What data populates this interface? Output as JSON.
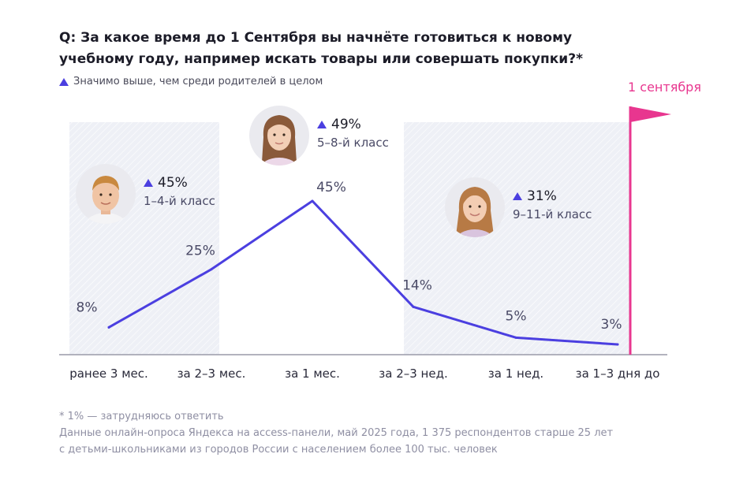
{
  "title": "Q: За какое время до 1 Сентября вы начнёте готовиться к новому учебному году, например искать товары или совершать покупки?*",
  "legend_note": "Значимо выше, чем среди родителей в целом",
  "flag_label": "1 сентября",
  "colors": {
    "line": "#4b3fe0",
    "flag": "#e8368f",
    "band": "#eef0f6",
    "text": "#1c1c28",
    "muted": "#8f8fa3"
  },
  "cards": [
    {
      "pct": "45%",
      "grade": "1–4-й класс",
      "avatar": "boy-photo"
    },
    {
      "pct": "49%",
      "grade": "5–8-й класс",
      "avatar": "girl-photo"
    },
    {
      "pct": "31%",
      "grade": "9–11-й класс",
      "avatar": "teen-girl-photo"
    }
  ],
  "chart_data": {
    "type": "line",
    "categories": [
      "ранее 3 мес.",
      "за 2–3 мес.",
      "за 1 мес.",
      "за 2–3 нед.",
      "за 1 нед.",
      "за 1–3 дня до"
    ],
    "values": [
      8,
      25,
      45,
      14,
      5,
      3
    ],
    "value_labels": [
      "8%",
      "25%",
      "45%",
      "14%",
      "5%",
      "3%"
    ],
    "ylim": [
      0,
      50
    ],
    "grid": false,
    "shaded_categories": [
      0,
      3,
      4,
      5
    ]
  },
  "footer": {
    "footnote": "* 1% — затрудняюсь ответить",
    "source_line1": "Данные онлайн-опроса Яндекса на access-панели, май 2025 года, 1 375 респондентов старше 25 лет",
    "source_line2": "с детьми-школьниками из городов России с населением более 100 тыс. человек"
  }
}
